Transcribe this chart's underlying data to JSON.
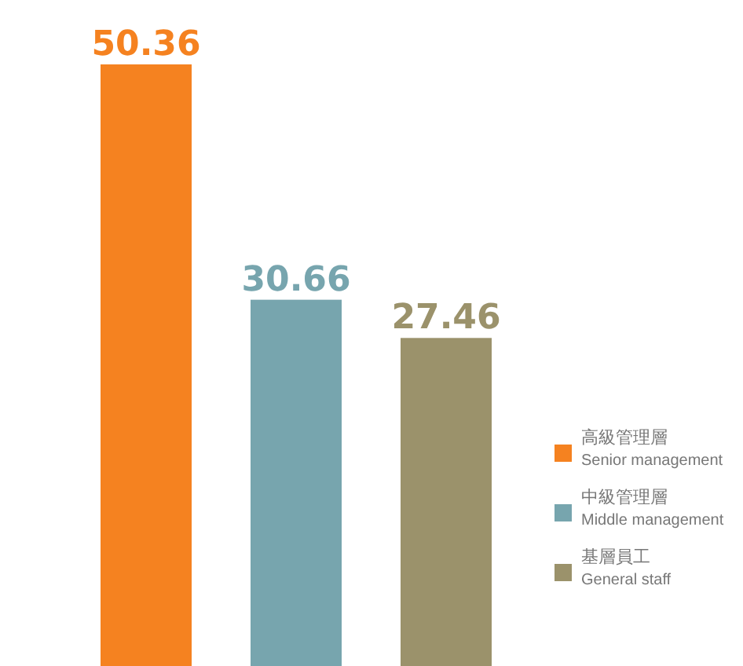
{
  "chart_data": {
    "type": "bar",
    "categories": [
      null,
      null,
      null
    ],
    "stacked": true,
    "series": [
      {
        "name": "高級管理層\nSenior management",
        "color": "#f58220",
        "values": [
          50.36,
          null,
          null
        ]
      },
      {
        "name": "中級管理層\nMiddle management",
        "color": "#77a5ae",
        "values": [
          null,
          30.66,
          null
        ]
      },
      {
        "name": "基層員工\nGeneral staff",
        "color": "#9b926b",
        "values": [
          null,
          null,
          27.46
        ]
      }
    ],
    "data_labels": true,
    "legend": "bottom right"
  }
}
